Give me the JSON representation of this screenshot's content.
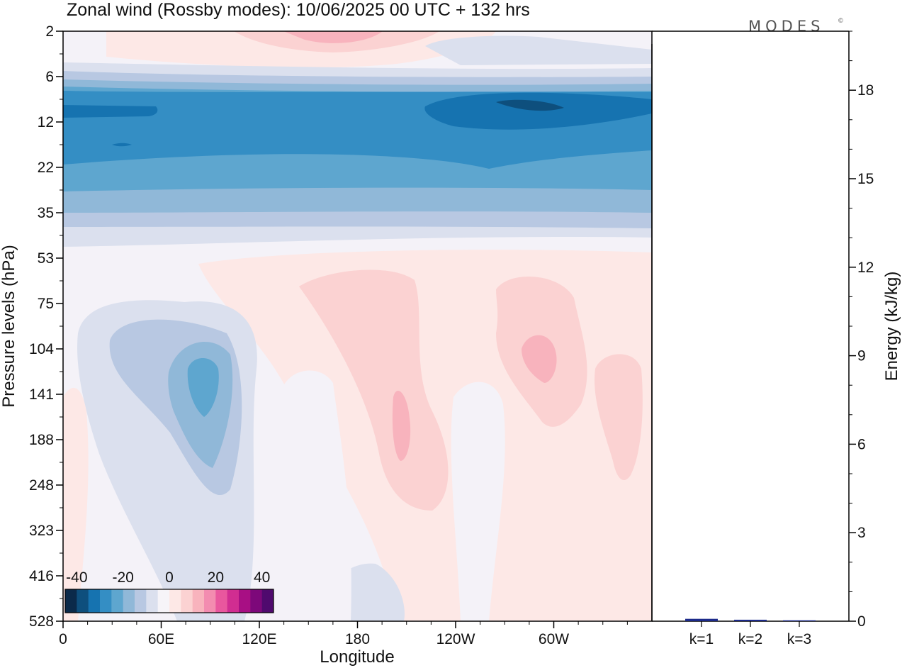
{
  "title": "Zonal wind (Rossby modes):  10/06/2025  00 UTC  + 132 hrs",
  "logo": {
    "text": "MODES",
    "mark": "©"
  },
  "chart_data": [
    {
      "type": "heatmap",
      "xlabel": "Longitude",
      "ylabel": "Pressure levels (hPa)",
      "x_ticks": [
        "0",
        "60E",
        "120E",
        "180",
        "120W",
        "60W"
      ],
      "y_ticks": [
        "2",
        "6",
        "12",
        "22",
        "35",
        "53",
        "75",
        "104",
        "141",
        "188",
        "248",
        "323",
        "416",
        "528"
      ],
      "colorbar": {
        "labels": [
          "-40",
          "-20",
          "0",
          "20",
          "40"
        ],
        "range": [
          -45,
          45
        ],
        "colors": [
          "#0b2a4a",
          "#0e4f7d",
          "#1673b0",
          "#348ec4",
          "#5ea6cf",
          "#90b8d8",
          "#b8c8e2",
          "#dbe0ee",
          "#f6f4f8",
          "#fde8e6",
          "#fbd2d2",
          "#f8b3bd",
          "#f38cb0",
          "#e9579e",
          "#d12d91",
          "#a80f84",
          "#7d087a",
          "#4f0a6e"
        ]
      },
      "features": [
        {
          "kind": "band",
          "label": "stratospheric easterly jet",
          "pressure_hPa": [
            8,
            30
          ],
          "min_value": -35
        },
        {
          "kind": "cell",
          "label": "negative cell",
          "longitude": "80E",
          "pressure_hPa": 141,
          "min_value": -15
        },
        {
          "kind": "cell",
          "label": "positive cell",
          "longitude": "160W",
          "pressure_hPa": 160,
          "max_value": 10
        },
        {
          "kind": "cell",
          "label": "positive cell",
          "longitude": "60W",
          "pressure_hPa": 104,
          "max_value": 10
        },
        {
          "kind": "band",
          "label": "weak westerly",
          "pressure_hPa": [
            2,
            4
          ],
          "max_value": 10
        }
      ]
    },
    {
      "type": "bar",
      "ylabel": "Energy (kJ/kg)",
      "ylim": [
        0,
        20
      ],
      "y_ticks": [
        "0",
        "3",
        "6",
        "9",
        "12",
        "15",
        "18"
      ],
      "categories": [
        "k=1",
        "k=2",
        "k=3"
      ],
      "values": [
        0.08,
        0.05,
        0.03
      ],
      "bar_color": "#1c2a8a"
    }
  ]
}
